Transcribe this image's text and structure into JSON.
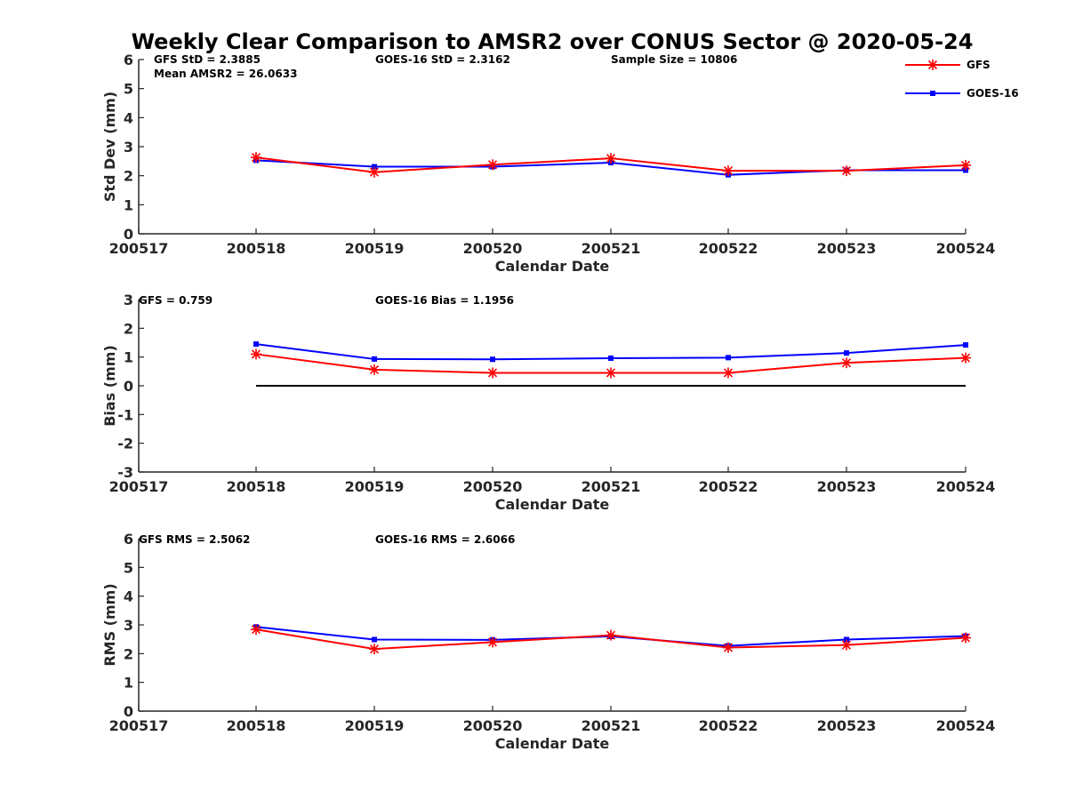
{
  "figure_title": "Weekly Clear Comparison to AMSR2 over CONUS Sector @ 2020-05-24",
  "legend": [
    {
      "name": "GFS",
      "color": "#ff0000",
      "marker": "asterisk"
    },
    {
      "name": "GOES-16",
      "color": "#0000ff",
      "marker": "square"
    }
  ],
  "chart_data": [
    {
      "type": "line",
      "ylabel": "Std Dev (mm)",
      "xlabel": "Calendar Date",
      "x_ticks": [
        "200517",
        "200518",
        "200519",
        "200520",
        "200521",
        "200522",
        "200523",
        "200524"
      ],
      "y_ticks": [
        "0",
        "1",
        "2",
        "3",
        "4",
        "5",
        "6"
      ],
      "ylim": [
        0,
        6
      ],
      "x_categories": [
        "200518",
        "200519",
        "200520",
        "200521",
        "200522",
        "200523",
        "200524"
      ],
      "series": [
        {
          "name": "GFS",
          "color": "#ff0000",
          "values": [
            2.63,
            2.12,
            2.38,
            2.6,
            2.17,
            2.17,
            2.36
          ]
        },
        {
          "name": "GOES-16",
          "color": "#0000ff",
          "values": [
            2.53,
            2.31,
            2.31,
            2.45,
            2.03,
            2.19,
            2.19
          ]
        }
      ],
      "annotations": [
        "GFS StD = 2.3885",
        "Mean AMSR2 = 26.0633",
        "GOES-16 StD = 2.3162",
        "Sample Size = 10806"
      ],
      "legend_location": "top-right",
      "zero_line": false
    },
    {
      "type": "line",
      "ylabel": "Bias (mm)",
      "xlabel": "Calendar Date",
      "x_ticks": [
        "200517",
        "200518",
        "200519",
        "200520",
        "200521",
        "200522",
        "200523",
        "200524"
      ],
      "y_ticks": [
        "-3",
        "-2",
        "-1",
        "0",
        "1",
        "2",
        "3"
      ],
      "ylim": [
        -3,
        3
      ],
      "x_categories": [
        "200518",
        "200519",
        "200520",
        "200521",
        "200522",
        "200523",
        "200524"
      ],
      "series": [
        {
          "name": "GFS",
          "color": "#ff0000",
          "values": [
            1.1,
            0.56,
            0.45,
            0.45,
            0.45,
            0.8,
            0.97
          ]
        },
        {
          "name": "GOES-16",
          "color": "#0000ff",
          "values": [
            1.45,
            0.93,
            0.92,
            0.96,
            0.98,
            1.14,
            1.42
          ]
        }
      ],
      "annotations": [
        "GFS = 0.759",
        "GOES-16 Bias  = 1.1956"
      ],
      "zero_line": true
    },
    {
      "type": "line",
      "ylabel": "RMS (mm)",
      "xlabel": "Calendar Date",
      "x_ticks": [
        "200517",
        "200518",
        "200519",
        "200520",
        "200521",
        "200522",
        "200523",
        "200524"
      ],
      "y_ticks": [
        "0",
        "1",
        "2",
        "3",
        "4",
        "5",
        "6"
      ],
      "ylim": [
        0,
        6
      ],
      "x_categories": [
        "200518",
        "200519",
        "200520",
        "200521",
        "200522",
        "200523",
        "200524"
      ],
      "series": [
        {
          "name": "GFS",
          "color": "#ff0000",
          "values": [
            2.84,
            2.16,
            2.4,
            2.64,
            2.21,
            2.3,
            2.55
          ]
        },
        {
          "name": "GOES-16",
          "color": "#0000ff",
          "values": [
            2.93,
            2.49,
            2.48,
            2.6,
            2.27,
            2.49,
            2.61
          ]
        }
      ],
      "annotations": [
        "GFS RMS = 2.5062",
        "GOES-16 RMS = 2.6066"
      ],
      "zero_line": false
    }
  ]
}
